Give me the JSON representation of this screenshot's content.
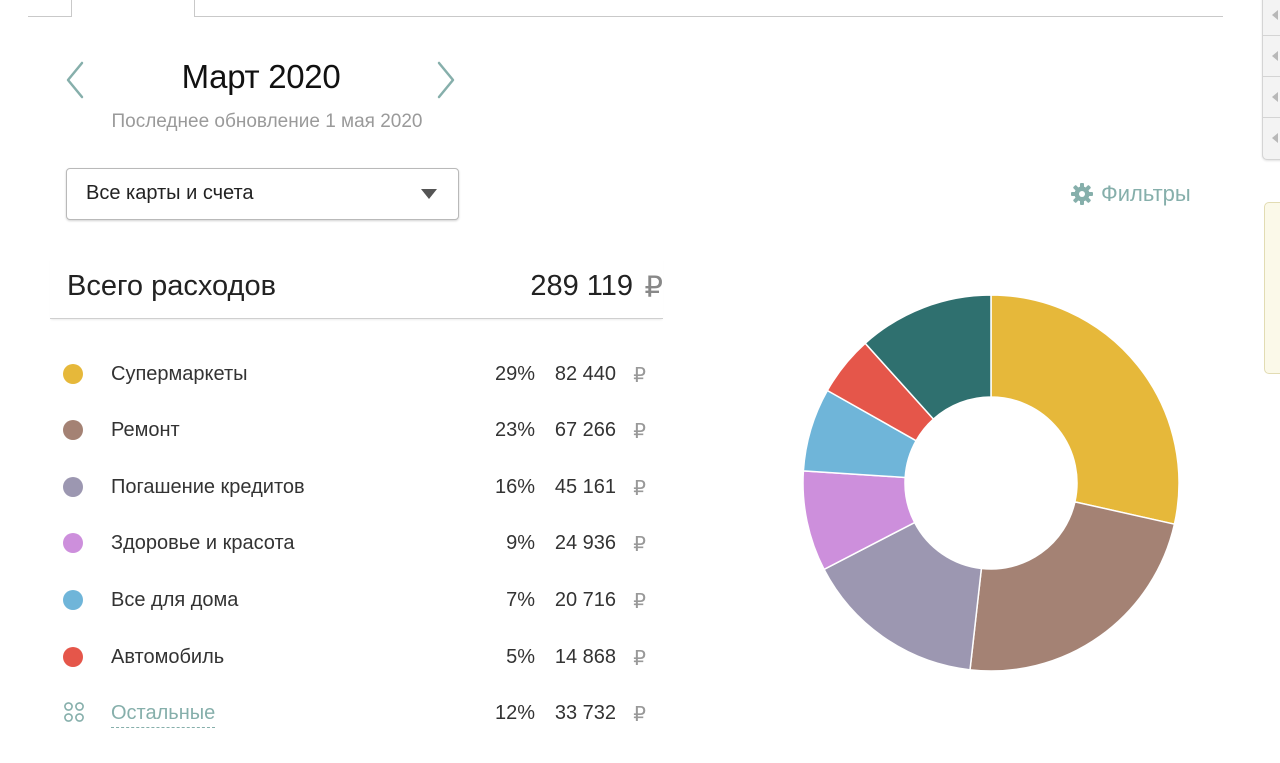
{
  "header": {
    "month_title": "Март 2020",
    "last_update": "Последнее обновление 1 мая 2020"
  },
  "account_select": {
    "value": "Все карты и счета"
  },
  "filters": {
    "label": "Фильтры"
  },
  "total": {
    "label": "Всего расходов",
    "value": "289 119",
    "currency": "₽"
  },
  "categories": [
    {
      "name": "Супермаркеты",
      "percent": "29%",
      "amount": "82 440",
      "currency": "₽",
      "color": "#e6b83a",
      "value": 82440
    },
    {
      "name": "Ремонт",
      "percent": "23%",
      "amount": "67 266",
      "currency": "₽",
      "color": "#a48274",
      "value": 67266
    },
    {
      "name": "Погашение кредитов",
      "percent": "16%",
      "amount": "45 161",
      "currency": "₽",
      "color": "#9c97b1",
      "value": 45161
    },
    {
      "name": "Здоровье и красота",
      "percent": "9%",
      "amount": "24 936",
      "currency": "₽",
      "color": "#cd8fdc",
      "value": 24936
    },
    {
      "name": "Все для дома",
      "percent": "7%",
      "amount": "20 716",
      "currency": "₽",
      "color": "#6fb5d9",
      "value": 20716
    },
    {
      "name": "Автомобиль",
      "percent": "5%",
      "amount": "14 868",
      "currency": "₽",
      "color": "#e5564a",
      "value": 14868
    },
    {
      "name": "Остальные",
      "percent": "12%",
      "amount": "33 732",
      "currency": "₽",
      "color": "#2f706f",
      "value": 33732
    }
  ],
  "colors": {
    "accent": "#86afab",
    "muted_text": "#9a9a9a"
  },
  "icons": {
    "prev": "chevron-left-icon",
    "next": "chevron-right-icon",
    "filters": "gear-icon",
    "others": "grid-dots-icon",
    "dropdown": "caret-down-icon"
  }
}
